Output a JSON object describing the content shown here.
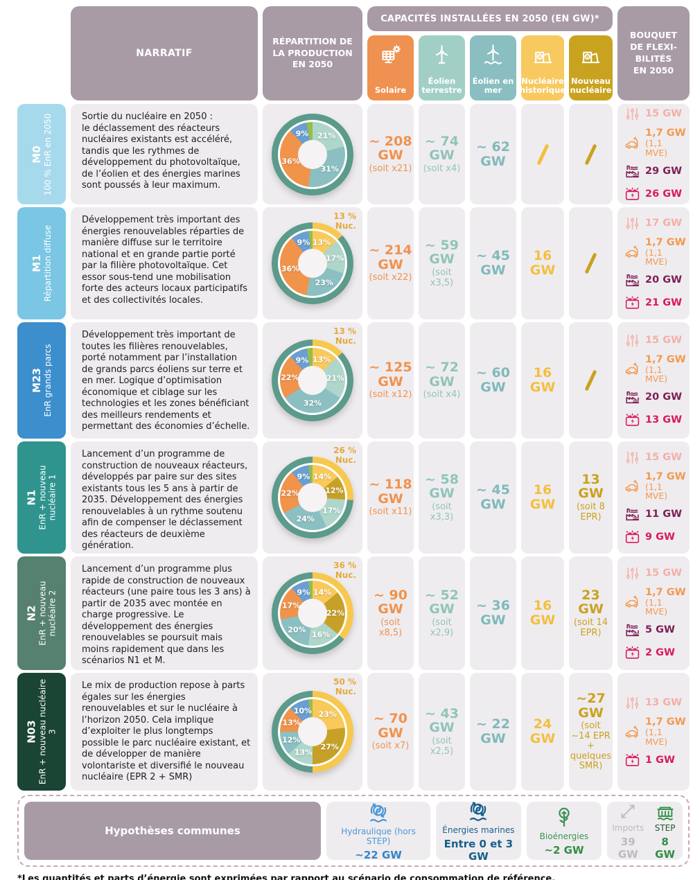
{
  "header": {
    "narratif_label": "NARRATIF",
    "repartition_label": "RÉPARTITION DE\nLA PRODUCTION\nEN 2050",
    "capacites_label": "CAPACITÉS INSTALLÉES EN 2050 (EN GW)*",
    "bouquet_label": "BOUQUET\nDE FLEXI-\nBILITÉS\nEN 2050",
    "tech_columns": [
      {
        "id": "solaire",
        "label": "Solaire",
        "icon": "solar-panel-icon",
        "color": "#EF9150",
        "text_color": "#F0924D"
      },
      {
        "id": "eolien-terrestre",
        "label": "Éolien terrestre",
        "icon": "wind-turbine-icon",
        "color": "#A2CFC5",
        "text_color": "#8FC4BA"
      },
      {
        "id": "eolien-en-mer",
        "label": "Éolien en mer",
        "icon": "offshore-wind-turbine-icon",
        "color": "#8ABEC0",
        "text_color": "#7FB9BB"
      },
      {
        "id": "nucleaire-historique",
        "label": "Nucléaire historique",
        "icon": "nuclear-plant-icon",
        "color": "#F7C95F",
        "text_color": "#F4BE3E"
      },
      {
        "id": "nouveau-nucleaire",
        "label": "Nouveau nucléaire",
        "icon": "nuclear-plant-icon",
        "color": "#C9A21F",
        "text_color": "#C9A21F"
      }
    ]
  },
  "palette": {
    "mauve": "#A89BA5",
    "cell_bg": "#EFECEF",
    "ring_teal": "#5C9A8B",
    "ring_yellow": "#F7C84E",
    "nuc_note": "#E4A93C"
  },
  "scenarios": [
    {
      "code": "M0",
      "subtitle": "100 % EnR en 2050",
      "color": "#A7D9EC",
      "narrative": "Sortie du nucléaire en 2050 :\nle déclassement des réacteurs nucléaires existants est accéléré, tandis que les rythmes de développement du photovoltaïque, de l’éolien et des énergies marines sont poussés à leur maximum.",
      "donut": {
        "nuc_pct": 0,
        "nuc_label": null,
        "segments": [
          {
            "name": "éolien terrestre",
            "pct": 21,
            "color": "#AFD6CA"
          },
          {
            "name": "éolien en mer",
            "pct": 31,
            "color": "#8BBFC2"
          },
          {
            "name": "solaire",
            "pct": 36,
            "color": "#F0934B"
          },
          {
            "name": "hydraulique",
            "pct": 9,
            "color": "#699FD2"
          },
          {
            "name": "bioénergies",
            "pct": 3,
            "color": "#95BE4A"
          }
        ]
      },
      "caps": [
        {
          "v": "~ 208",
          "unit": "GW",
          "note": "(soit x21)"
        },
        {
          "v": "~ 74",
          "unit": "GW",
          "note": "(soit x4)"
        },
        {
          "v": "~ 62",
          "unit": "GW"
        },
        {
          "slash": true
        },
        {
          "slash": true
        }
      ],
      "flex": [
        {
          "icon": "demand-response-sliders-icon",
          "color": "#F5AFA8",
          "value": "15 GW"
        },
        {
          "icon": "electric-vehicle-icon",
          "color": "#F2994E",
          "value": "1,7 GW",
          "sub": "(1,1 MVE)"
        },
        {
          "icon": "electrolysis-factory-icon",
          "color": "#7D1F55",
          "value": "29 GW"
        },
        {
          "icon": "battery-icon",
          "color": "#D91A5E",
          "value": "26 GW"
        }
      ]
    },
    {
      "code": "M1",
      "subtitle": "Répartition diffuse",
      "color": "#7AC6E4",
      "narrative": "Développement très important des énergies renouvelables réparties de manière diffuse sur le territoire national et en grande partie porté par la filière photovoltaïque. Cet essor sous-tend une mobilisation forte des acteurs locaux participatifs et des collectivités locales.",
      "donut": {
        "nuc_pct": 13,
        "nuc_label": [
          "13 %",
          "Nuc."
        ],
        "segments": [
          {
            "name": "nucléaire",
            "pct": 13,
            "color": "#F9CA5B"
          },
          {
            "name": "éolien terrestre",
            "pct": 17,
            "color": "#AFD6CA"
          },
          {
            "name": "éolien en mer",
            "pct": 23,
            "color": "#8BBFC2"
          },
          {
            "name": "solaire",
            "pct": 36,
            "color": "#F0934B"
          },
          {
            "name": "hydraulique",
            "pct": 9,
            "color": "#699FD2"
          },
          {
            "name": "bioénergies",
            "pct": 2,
            "color": "#95BE4A"
          }
        ]
      },
      "caps": [
        {
          "v": "~ 214",
          "unit": "GW",
          "note": "(soit x22)"
        },
        {
          "v": "~ 59",
          "unit": "GW",
          "note": "(soit x3,5)"
        },
        {
          "v": "~ 45",
          "unit": "GW"
        },
        {
          "v": "16",
          "unit": "GW"
        },
        {
          "slash": true
        }
      ],
      "flex": [
        {
          "icon": "demand-response-sliders-icon",
          "color": "#F5AFA8",
          "value": "17 GW"
        },
        {
          "icon": "electric-vehicle-icon",
          "color": "#F2994E",
          "value": "1,7 GW",
          "sub": "(1,1 MVE)"
        },
        {
          "icon": "electrolysis-factory-icon",
          "color": "#7D1F55",
          "value": "20 GW"
        },
        {
          "icon": "battery-icon",
          "color": "#D91A5E",
          "value": "21 GW"
        }
      ]
    },
    {
      "code": "M23",
      "subtitle": "EnR grands parcs",
      "color": "#3D8ECD",
      "narrative": "Développement très important de toutes les filières renouvelables, porté notamment par l’installation de grands parcs éoliens sur terre et en mer. Logique d’optimisation économique et ciblage sur les technologies et les zones bénéficiant des meilleurs rendements et permettant des économies d’échelle.",
      "donut": {
        "nuc_pct": 13,
        "nuc_label": [
          "13 %",
          "Nuc."
        ],
        "segments": [
          {
            "name": "nucléaire",
            "pct": 13,
            "color": "#F9CA5B"
          },
          {
            "name": "éolien terrestre",
            "pct": 21,
            "color": "#AFD6CA"
          },
          {
            "name": "éolien en mer",
            "pct": 32,
            "color": "#8BBFC2"
          },
          {
            "name": "solaire",
            "pct": 22,
            "color": "#F0934B"
          },
          {
            "name": "hydraulique",
            "pct": 9,
            "color": "#699FD2"
          },
          {
            "name": "bioénergies",
            "pct": 3,
            "color": "#95BE4A"
          }
        ]
      },
      "caps": [
        {
          "v": "~ 125",
          "unit": "GW",
          "note": "(soit x12)"
        },
        {
          "v": "~ 72",
          "unit": "GW",
          "note": "(soit x4)"
        },
        {
          "v": "~ 60",
          "unit": "GW"
        },
        {
          "v": "16",
          "unit": "GW"
        },
        {
          "slash": true
        }
      ],
      "flex": [
        {
          "icon": "demand-response-sliders-icon",
          "color": "#F5AFA8",
          "value": "15 GW"
        },
        {
          "icon": "electric-vehicle-icon",
          "color": "#F2994E",
          "value": "1,7 GW",
          "sub": "(1,1 MVE)"
        },
        {
          "icon": "electrolysis-factory-icon",
          "color": "#7D1F55",
          "value": "20 GW"
        },
        {
          "icon": "battery-icon",
          "color": "#D91A5E",
          "value": "13 GW"
        }
      ]
    },
    {
      "code": "N1",
      "subtitle": "EnR + nouveau nucléaire 1",
      "color": "#2F948E",
      "narrative": "Lancement d’un programme de construction de nouveaux réacteurs, développés par paire sur des sites existants tous les 5 ans à partir de 2035. Développement des énergies renouvelables à un rythme soutenu afin de compenser le déclassement des réacteurs de deuxième génération.",
      "donut": {
        "nuc_pct": 26,
        "nuc_label": [
          "26 %",
          "Nuc."
        ],
        "segments": [
          {
            "name": "nucléaire historique",
            "pct": 14,
            "color": "#F9CA5B"
          },
          {
            "name": "nouveau nucléaire",
            "pct": 12,
            "color": "#C7A127"
          },
          {
            "name": "éolien terrestre",
            "pct": 17,
            "color": "#AFD6CA"
          },
          {
            "name": "éolien en mer",
            "pct": 24,
            "color": "#8BBFC2"
          },
          {
            "name": "solaire",
            "pct": 22,
            "color": "#F0934B"
          },
          {
            "name": "hydraulique",
            "pct": 9,
            "color": "#699FD2"
          },
          {
            "name": "bioénergies",
            "pct": 2,
            "color": "#95BE4A"
          }
        ]
      },
      "caps": [
        {
          "v": "~ 118",
          "unit": "GW",
          "note": "(soit x11)"
        },
        {
          "v": "~ 58",
          "unit": "GW",
          "note": "(soit x3,3)"
        },
        {
          "v": "~ 45",
          "unit": "GW"
        },
        {
          "v": "16",
          "unit": "GW"
        },
        {
          "v": "13",
          "unit": "GW",
          "note": "(soit 8 EPR)"
        }
      ],
      "flex": [
        {
          "icon": "demand-response-sliders-icon",
          "color": "#F5AFA8",
          "value": "15 GW"
        },
        {
          "icon": "electric-vehicle-icon",
          "color": "#F2994E",
          "value": "1,7 GW",
          "sub": "(1,1 MVE)"
        },
        {
          "icon": "electrolysis-factory-icon",
          "color": "#7D1F55",
          "value": "11 GW"
        },
        {
          "icon": "battery-icon",
          "color": "#D91A5E",
          "value": "9 GW"
        }
      ]
    },
    {
      "code": "N2",
      "subtitle": "EnR + nouveau nucléaire 2",
      "color": "#56806F",
      "narrative": "Lancement d’un programme plus rapide de construction de nouveaux réacteurs (une paire tous les 3 ans) à partir de 2035 avec montée en charge progressive. Le développement des énergies renouvelables se poursuit mais moins rapidement que dans les scénarios N1 et M.",
      "donut": {
        "nuc_pct": 36,
        "nuc_label": [
          "36 %",
          "Nuc."
        ],
        "segments": [
          {
            "name": "nucléaire historique",
            "pct": 14,
            "color": "#F9CA5B"
          },
          {
            "name": "nouveau nucléaire",
            "pct": 22,
            "color": "#C7A127"
          },
          {
            "name": "éolien terrestre",
            "pct": 16,
            "color": "#AFD6CA"
          },
          {
            "name": "éolien en mer",
            "pct": 20,
            "color": "#8BBFC2"
          },
          {
            "name": "solaire",
            "pct": 17,
            "color": "#F0934B"
          },
          {
            "name": "hydraulique",
            "pct": 9,
            "color": "#699FD2"
          },
          {
            "name": "bioénergies",
            "pct": 2,
            "color": "#95BE4A"
          }
        ]
      },
      "caps": [
        {
          "v": "~ 90",
          "unit": "GW",
          "note": "(soit x8,5)"
        },
        {
          "v": "~ 52",
          "unit": "GW",
          "note": "(soit x2,9)"
        },
        {
          "v": "~ 36",
          "unit": "GW"
        },
        {
          "v": "16",
          "unit": "GW"
        },
        {
          "v": "23",
          "unit": "GW",
          "note": "(soit 14 EPR)"
        }
      ],
      "flex": [
        {
          "icon": "demand-response-sliders-icon",
          "color": "#F5AFA8",
          "value": "15 GW"
        },
        {
          "icon": "electric-vehicle-icon",
          "color": "#F2994E",
          "value": "1,7 GW",
          "sub": "(1,1 MVE)"
        },
        {
          "icon": "electrolysis-factory-icon",
          "color": "#7D1F55",
          "value": "5 GW"
        },
        {
          "icon": "battery-icon",
          "color": "#D91A5E",
          "value": "2 GW"
        }
      ]
    },
    {
      "code": "N03",
      "subtitle": "EnR + nouveau nucléaire 3",
      "color": "#1A4434",
      "narrative": "Le mix de production repose à parts égales sur les énergies renouvelables et sur le nucléaire à l’horizon 2050. Cela implique d’exploiter le plus longtemps possible le parc nucléaire existant, et de développer de manière volontariste et diversifié le nouveau nucléaire (EPR 2 + SMR)",
      "donut": {
        "nuc_pct": 50,
        "nuc_label": [
          "50 %",
          "Nuc."
        ],
        "segments": [
          {
            "name": "nucléaire historique",
            "pct": 23,
            "color": "#F9CA5B"
          },
          {
            "name": "nouveau nucléaire",
            "pct": 27,
            "color": "#C7A127"
          },
          {
            "name": "éolien terrestre",
            "pct": 13,
            "color": "#AFD6CA"
          },
          {
            "name": "éolien en mer",
            "pct": 12,
            "color": "#8BBFC2"
          },
          {
            "name": "solaire",
            "pct": 13,
            "color": "#F0934B"
          },
          {
            "name": "hydraulique",
            "pct": 10,
            "color": "#699FD2"
          },
          {
            "name": "bioénergies",
            "pct": 2,
            "color": "#95BE4A"
          }
        ]
      },
      "caps": [
        {
          "v": "~ 70",
          "unit": "GW",
          "note": "(soit x7)"
        },
        {
          "v": "~ 43",
          "unit": "GW",
          "note": "(soit x2,5)"
        },
        {
          "v": "~ 22",
          "unit": "GW"
        },
        {
          "v": "24",
          "unit": "GW"
        },
        {
          "v": "~27",
          "unit": "GW",
          "note": "(soit ~14 EPR + quelques SMR)"
        }
      ],
      "flex": [
        {
          "icon": "demand-response-sliders-icon",
          "color": "#F5AFA8",
          "value": "13 GW"
        },
        {
          "icon": "electric-vehicle-icon",
          "color": "#F2994E",
          "value": "1,7 GW",
          "sub": "(1,1 MVE)"
        },
        {
          "icon": "battery-icon",
          "color": "#D91A5E",
          "value": "1 GW"
        }
      ]
    }
  ],
  "common": {
    "title": "Hypothèses communes",
    "cards": [
      {
        "id": "hydraulique",
        "icon": "hydro-turbine-icon",
        "icon_color": "#4D96D6",
        "label": "Hydraulique (hors STEP)",
        "label_color": "#4D96D6",
        "value": "~22 GW",
        "value_color": "#3584C6"
      },
      {
        "id": "energies-marines",
        "icon": "marine-turbine-icon",
        "icon_color": "#16608D",
        "label": "Énergies marines",
        "label_color": "#16608D",
        "value": "Entre 0 et 3 GW",
        "value_color": "#16608D"
      },
      {
        "id": "bioenergies",
        "icon": "bioenergy-plant-icon",
        "icon_color": "#3C9355",
        "label": "Bioénergies",
        "label_color": "#3C9355",
        "value": "~2 GW",
        "value_color": "#2F8F46"
      },
      {
        "items": [
          {
            "id": "imports",
            "icon": "imports-arrows-icon",
            "icon_color": "#BDBABD",
            "label": "Imports",
            "label_color": "#BDBABD",
            "value": "39 GW",
            "value_color": "#BDBABD"
          },
          {
            "id": "step",
            "icon": "step-dam-icon",
            "icon_color": "#2F8F46",
            "label": "STEP",
            "label_color": "#1C5B2E",
            "value": "8 GW",
            "value_color": "#2F8F46"
          }
        ]
      }
    ]
  },
  "footnote": "*Les quantités et parts d’énergie sont exprimées par rapport au scénario de consommation de référence."
}
